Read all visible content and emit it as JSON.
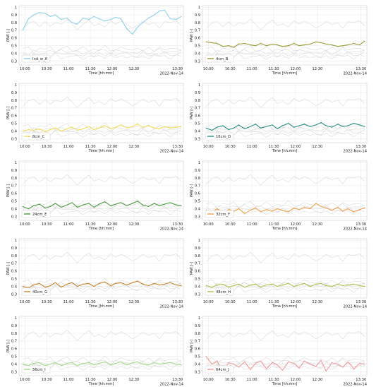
{
  "figure": {
    "xlabel": "Time [hh:mm]",
    "ylabel": "PAW [-]",
    "date": "2022-Nov-14",
    "x_ticks": [
      "10:00",
      "10:30",
      "11:00",
      "11:30",
      "12:00",
      "12:30",
      "13:30"
    ],
    "y_ticks": [
      "0.3",
      "0.4",
      "0.5",
      "0.6",
      "0.7",
      "0.8",
      "0.9",
      "1"
    ],
    "grid": true,
    "background_series_color": "#d9d9d9"
  },
  "chart_data": [
    {
      "type": "line",
      "x_range": [
        "09:52",
        "13:38"
      ],
      "ylim": [
        0.25,
        1.02
      ],
      "legend": "Ind_w_A",
      "legend_position": "bottom-left",
      "color": "#8fcfe8",
      "series": [
        {
          "name": "Ind_w_A",
          "x": [
            "09:57",
            "10:05",
            "10:12",
            "10:20",
            "10:28",
            "10:35",
            "10:42",
            "10:50",
            "10:58",
            "11:05",
            "11:12",
            "11:20",
            "11:28",
            "11:35",
            "11:42",
            "11:50",
            "11:58",
            "12:05",
            "12:12",
            "12:20",
            "12:28",
            "12:35",
            "12:42",
            "12:50",
            "12:58",
            "13:05",
            "13:12",
            "13:20",
            "13:28",
            "13:35"
          ],
          "values": [
            0.7,
            0.85,
            0.9,
            0.93,
            0.92,
            0.88,
            0.9,
            0.84,
            0.86,
            0.8,
            0.78,
            0.86,
            0.84,
            0.88,
            0.85,
            0.82,
            0.84,
            0.87,
            0.85,
            0.72,
            0.65,
            0.74,
            0.8,
            0.86,
            0.9,
            0.95,
            0.96,
            0.85,
            0.84,
            0.88
          ]
        }
      ]
    },
    {
      "type": "line",
      "x_range": [
        "09:52",
        "13:38"
      ],
      "ylim": [
        0.25,
        1.02
      ],
      "legend": "4cm_B",
      "legend_position": "bottom-left",
      "color": "#9a9a38",
      "series": [
        {
          "name": "4cm_B",
          "x": [
            "09:57",
            "10:05",
            "10:12",
            "10:20",
            "10:28",
            "10:35",
            "10:42",
            "10:50",
            "10:58",
            "11:05",
            "11:12",
            "11:20",
            "11:28",
            "11:35",
            "11:42",
            "11:50",
            "11:58",
            "12:05",
            "12:12",
            "12:20",
            "12:28",
            "12:35",
            "12:42",
            "12:50",
            "12:58",
            "13:05",
            "13:12",
            "13:20",
            "13:28",
            "13:35"
          ],
          "values": [
            0.55,
            0.54,
            0.53,
            0.49,
            0.5,
            0.48,
            0.52,
            0.53,
            0.51,
            0.5,
            0.53,
            0.5,
            0.52,
            0.51,
            0.49,
            0.5,
            0.53,
            0.5,
            0.51,
            0.52,
            0.55,
            0.54,
            0.52,
            0.51,
            0.49,
            0.5,
            0.51,
            0.53,
            0.51,
            0.56
          ]
        }
      ]
    },
    {
      "type": "line",
      "x_range": [
        "09:52",
        "13:38"
      ],
      "ylim": [
        0.25,
        1.02
      ],
      "legend": "8cm_C",
      "legend_position": "bottom-left",
      "color": "#f3dc5a",
      "series": [
        {
          "name": "8cm_C",
          "x": [
            "09:57",
            "10:05",
            "10:12",
            "10:20",
            "10:28",
            "10:35",
            "10:42",
            "10:50",
            "10:58",
            "11:05",
            "11:12",
            "11:20",
            "11:28",
            "11:35",
            "11:42",
            "11:50",
            "11:58",
            "12:05",
            "12:12",
            "12:20",
            "12:28",
            "12:35",
            "12:42",
            "12:50",
            "12:58",
            "13:05",
            "13:12",
            "13:20",
            "13:28",
            "13:35"
          ],
          "values": [
            0.4,
            0.42,
            0.41,
            0.43,
            0.39,
            0.42,
            0.44,
            0.4,
            0.43,
            0.45,
            0.41,
            0.43,
            0.46,
            0.42,
            0.44,
            0.47,
            0.43,
            0.45,
            0.48,
            0.44,
            0.46,
            0.49,
            0.45,
            0.47,
            0.44,
            0.43,
            0.46,
            0.44,
            0.45,
            0.46
          ]
        }
      ]
    },
    {
      "type": "line",
      "x_range": [
        "09:52",
        "13:38"
      ],
      "ylim": [
        0.25,
        1.02
      ],
      "legend": "16cm_D",
      "legend_position": "bottom-left",
      "color": "#2a8f80",
      "series": [
        {
          "name": "16cm_D",
          "x": [
            "09:57",
            "10:05",
            "10:12",
            "10:20",
            "10:28",
            "10:35",
            "10:42",
            "10:50",
            "10:58",
            "11:05",
            "11:12",
            "11:20",
            "11:28",
            "11:35",
            "11:42",
            "11:50",
            "11:58",
            "12:05",
            "12:12",
            "12:20",
            "12:28",
            "12:35",
            "12:42",
            "12:50",
            "12:58",
            "13:05",
            "13:12",
            "13:20",
            "13:28",
            "13:35"
          ],
          "values": [
            0.44,
            0.41,
            0.45,
            0.47,
            0.42,
            0.44,
            0.48,
            0.43,
            0.46,
            0.49,
            0.44,
            0.46,
            0.48,
            0.43,
            0.47,
            0.5,
            0.45,
            0.47,
            0.49,
            0.46,
            0.48,
            0.51,
            0.47,
            0.45,
            0.49,
            0.46,
            0.47,
            0.5,
            0.48,
            0.46
          ]
        }
      ]
    },
    {
      "type": "line",
      "x_range": [
        "09:52",
        "13:38"
      ],
      "ylim": [
        0.25,
        1.02
      ],
      "legend": "24cm_E",
      "legend_position": "bottom-left",
      "color": "#4a9e3f",
      "series": [
        {
          "name": "24cm_E",
          "x": [
            "09:57",
            "10:05",
            "10:12",
            "10:20",
            "10:28",
            "10:35",
            "10:42",
            "10:50",
            "10:58",
            "11:05",
            "11:12",
            "11:20",
            "11:28",
            "11:35",
            "11:42",
            "11:50",
            "11:58",
            "12:05",
            "12:12",
            "12:20",
            "12:28",
            "12:35",
            "12:42",
            "12:50",
            "12:58",
            "13:05",
            "13:12",
            "13:20",
            "13:28",
            "13:35"
          ],
          "values": [
            0.43,
            0.4,
            0.44,
            0.46,
            0.41,
            0.43,
            0.47,
            0.42,
            0.45,
            0.48,
            0.42,
            0.45,
            0.47,
            0.42,
            0.46,
            0.49,
            0.44,
            0.46,
            0.48,
            0.44,
            0.47,
            0.5,
            0.45,
            0.43,
            0.47,
            0.44,
            0.46,
            0.48,
            0.45,
            0.44
          ]
        }
      ]
    },
    {
      "type": "line",
      "x_range": [
        "09:52",
        "13:38"
      ],
      "ylim": [
        0.25,
        1.02
      ],
      "legend": "32cm_F",
      "legend_position": "bottom-left",
      "color": "#f0a24a",
      "series": [
        {
          "name": "32cm_F",
          "x": [
            "09:57",
            "10:05",
            "10:12",
            "10:20",
            "10:28",
            "10:35",
            "10:42",
            "10:50",
            "10:58",
            "11:05",
            "11:12",
            "11:20",
            "11:28",
            "11:35",
            "11:42",
            "11:50",
            "11:58",
            "12:05",
            "12:12",
            "12:20",
            "12:28",
            "12:35",
            "12:42",
            "12:50",
            "12:58",
            "13:05",
            "13:12",
            "13:20",
            "13:28",
            "13:35"
          ],
          "values": [
            0.38,
            0.36,
            0.4,
            0.35,
            0.39,
            0.37,
            0.4,
            0.34,
            0.38,
            0.41,
            0.36,
            0.39,
            0.37,
            0.4,
            0.38,
            0.36,
            0.41,
            0.39,
            0.42,
            0.4,
            0.47,
            0.43,
            0.41,
            0.38,
            0.42,
            0.37,
            0.4,
            0.36,
            0.39,
            0.41
          ]
        }
      ]
    },
    {
      "type": "line",
      "x_range": [
        "09:52",
        "13:38"
      ],
      "ylim": [
        0.25,
        1.02
      ],
      "legend": "40cm_G",
      "legend_position": "bottom-left",
      "color": "#c7862f",
      "series": [
        {
          "name": "40cm_G",
          "x": [
            "09:57",
            "10:05",
            "10:12",
            "10:20",
            "10:28",
            "10:35",
            "10:42",
            "10:50",
            "10:58",
            "11:05",
            "11:12",
            "11:20",
            "11:28",
            "11:35",
            "11:42",
            "11:50",
            "11:58",
            "12:05",
            "12:12",
            "12:20",
            "12:28",
            "12:35",
            "12:42",
            "12:50",
            "12:58",
            "13:05",
            "13:12",
            "13:20",
            "13:28",
            "13:35"
          ],
          "values": [
            0.4,
            0.38,
            0.42,
            0.44,
            0.39,
            0.41,
            0.45,
            0.39,
            0.43,
            0.45,
            0.4,
            0.43,
            0.44,
            0.4,
            0.44,
            0.46,
            0.41,
            0.44,
            0.45,
            0.42,
            0.45,
            0.47,
            0.43,
            0.41,
            0.44,
            0.42,
            0.43,
            0.45,
            0.42,
            0.41
          ]
        }
      ]
    },
    {
      "type": "line",
      "x_range": [
        "09:52",
        "13:38"
      ],
      "ylim": [
        0.25,
        1.02
      ],
      "legend": "48cm_H",
      "legend_position": "bottom-left",
      "color": "#a9c24e",
      "series": [
        {
          "name": "48cm_H",
          "x": [
            "09:57",
            "10:05",
            "10:12",
            "10:20",
            "10:28",
            "10:35",
            "10:42",
            "10:50",
            "10:58",
            "11:05",
            "11:12",
            "11:20",
            "11:28",
            "11:35",
            "11:42",
            "11:50",
            "11:58",
            "12:05",
            "12:12",
            "12:20",
            "12:28",
            "12:35",
            "12:42",
            "12:50",
            "12:58",
            "13:05",
            "13:12",
            "13:20",
            "13:28",
            "13:35"
          ],
          "values": [
            0.41,
            0.39,
            0.42,
            0.43,
            0.39,
            0.41,
            0.43,
            0.39,
            0.42,
            0.43,
            0.39,
            0.42,
            0.43,
            0.4,
            0.42,
            0.44,
            0.4,
            0.42,
            0.44,
            0.4,
            0.43,
            0.44,
            0.41,
            0.4,
            0.43,
            0.41,
            0.42,
            0.43,
            0.41,
            0.4
          ]
        }
      ]
    },
    {
      "type": "line",
      "x_range": [
        "09:52",
        "13:38"
      ],
      "ylim": [
        0.25,
        1.02
      ],
      "legend": "56cm_I",
      "legend_position": "bottom-left",
      "color": "#9fdc8c",
      "series": [
        {
          "name": "56cm_I",
          "x": [
            "09:57",
            "10:05",
            "10:12",
            "10:20",
            "10:28",
            "10:35",
            "10:42",
            "10:50",
            "10:58",
            "11:05",
            "11:12",
            "11:20",
            "11:28",
            "11:35",
            "11:42",
            "11:50",
            "11:58",
            "12:05",
            "12:12",
            "12:20",
            "12:28",
            "12:35",
            "12:42",
            "12:50",
            "12:58",
            "13:05",
            "13:12",
            "13:20",
            "13:28",
            "13:35"
          ],
          "values": [
            0.4,
            0.38,
            0.41,
            0.42,
            0.38,
            0.4,
            0.42,
            0.38,
            0.41,
            0.42,
            0.38,
            0.41,
            0.42,
            0.39,
            0.41,
            0.43,
            0.39,
            0.41,
            0.43,
            0.39,
            0.42,
            0.43,
            0.4,
            0.39,
            0.42,
            0.4,
            0.41,
            0.42,
            0.4,
            0.39
          ]
        }
      ]
    },
    {
      "type": "line",
      "x_range": [
        "09:52",
        "13:38"
      ],
      "ylim": [
        0.25,
        1.02
      ],
      "legend": "64cm_J",
      "legend_position": "bottom-left",
      "color": "#ef9a9a",
      "series": [
        {
          "name": "64cm_J",
          "x": [
            "09:57",
            "10:05",
            "10:12",
            "10:20",
            "10:28",
            "10:35",
            "10:42",
            "10:50",
            "10:58",
            "11:05",
            "11:12",
            "11:20",
            "11:28",
            "11:35",
            "11:42",
            "11:50",
            "11:58",
            "12:05",
            "12:12",
            "12:20",
            "12:28",
            "12:35",
            "12:42",
            "12:50",
            "12:58",
            "13:05",
            "13:12",
            "13:20",
            "13:28",
            "13:35"
          ],
          "values": [
            0.5,
            0.4,
            0.44,
            0.3,
            0.42,
            0.4,
            0.36,
            0.43,
            0.33,
            0.41,
            0.44,
            0.34,
            0.42,
            0.39,
            0.32,
            0.43,
            0.41,
            0.35,
            0.44,
            0.4,
            0.37,
            0.45,
            0.31,
            0.42,
            0.4,
            0.36,
            0.43,
            0.34,
            0.41,
            0.4
          ]
        }
      ]
    }
  ]
}
